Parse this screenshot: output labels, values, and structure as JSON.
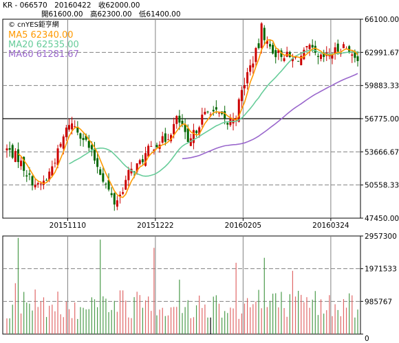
{
  "header": {
    "symbol": "KR - 066570",
    "date": "20160422",
    "close": "收62000.00",
    "open": "開61600.00",
    "high": "高62300.00",
    "low": "低61400.00"
  },
  "legend": {
    "brand": "© cnYES鉅亨網",
    "ma5": "MA5 62340.00",
    "ma20": "MA20 62535.00",
    "ma60": "MA60 61281.67"
  },
  "colors": {
    "up": "#cc0000",
    "down": "#006600",
    "ma5": "#ff9900",
    "ma20": "#66cc99",
    "ma60": "#9966cc",
    "grid": "#808080",
    "volume_up": "#e06666",
    "volume_down": "#4a9a4a",
    "volume_flat": "#000000"
  },
  "chart_data": [
    {
      "type": "candlestick",
      "ylim": [
        47450,
        66100
      ],
      "y_ticks": [
        "66100.00",
        "62991.67",
        "59883.33",
        "56775.00",
        "53666.67",
        "50558.33",
        "47450.00"
      ],
      "x_labels": [
        "20151110",
        "20151222",
        "20160205",
        "20160324"
      ],
      "series": [
        {
          "name": "MA5",
          "values": [
            61500,
            61720,
            61900,
            62050,
            62120,
            62200,
            62280,
            62340
          ]
        },
        {
          "name": "MA20",
          "values": [
            62900,
            62850,
            62780,
            62700,
            62640,
            62590,
            62560,
            62535
          ]
        },
        {
          "name": "MA60",
          "values": [
            60400,
            60600,
            60780,
            60940,
            61070,
            61170,
            61240,
            61281.67
          ]
        }
      ]
    },
    {
      "type": "bar",
      "title": "volume",
      "ylim": [
        0,
        2957300
      ],
      "y_ticks": [
        "2957300",
        "1971533",
        "985767",
        "0"
      ]
    }
  ]
}
